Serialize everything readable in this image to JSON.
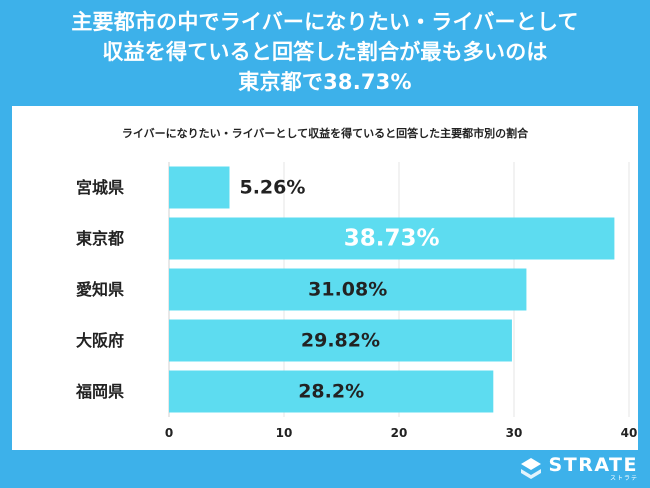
{
  "header": {
    "lines": [
      "主要都市の中でライバーになりたい・ライバーとして",
      "収益を得ていると回答した割合が最も多いのは",
      "東京都で38.73%"
    ]
  },
  "brand": {
    "name": "STRATE",
    "kana": "ストラテ"
  },
  "colors": {
    "background": "#3db1ea",
    "bar": "#5ddcf0",
    "panel": "#ffffff"
  },
  "chart_data": {
    "type": "bar",
    "orientation": "horizontal",
    "title": "ライバーになりたい・ライバーとして収益を得ていると回答した主要都市別の割合",
    "categories": [
      "宮城県",
      "東京都",
      "愛知県",
      "大阪府",
      "福岡県"
    ],
    "values": [
      5.26,
      38.73,
      31.08,
      29.82,
      28.2
    ],
    "data_labels": [
      "5.26%",
      "38.73%",
      "31.08%",
      "29.82%",
      "28.2%"
    ],
    "xlim": [
      0,
      40
    ],
    "xticks": [
      0,
      10,
      20,
      30,
      40
    ],
    "grid": true,
    "legend": "none"
  }
}
